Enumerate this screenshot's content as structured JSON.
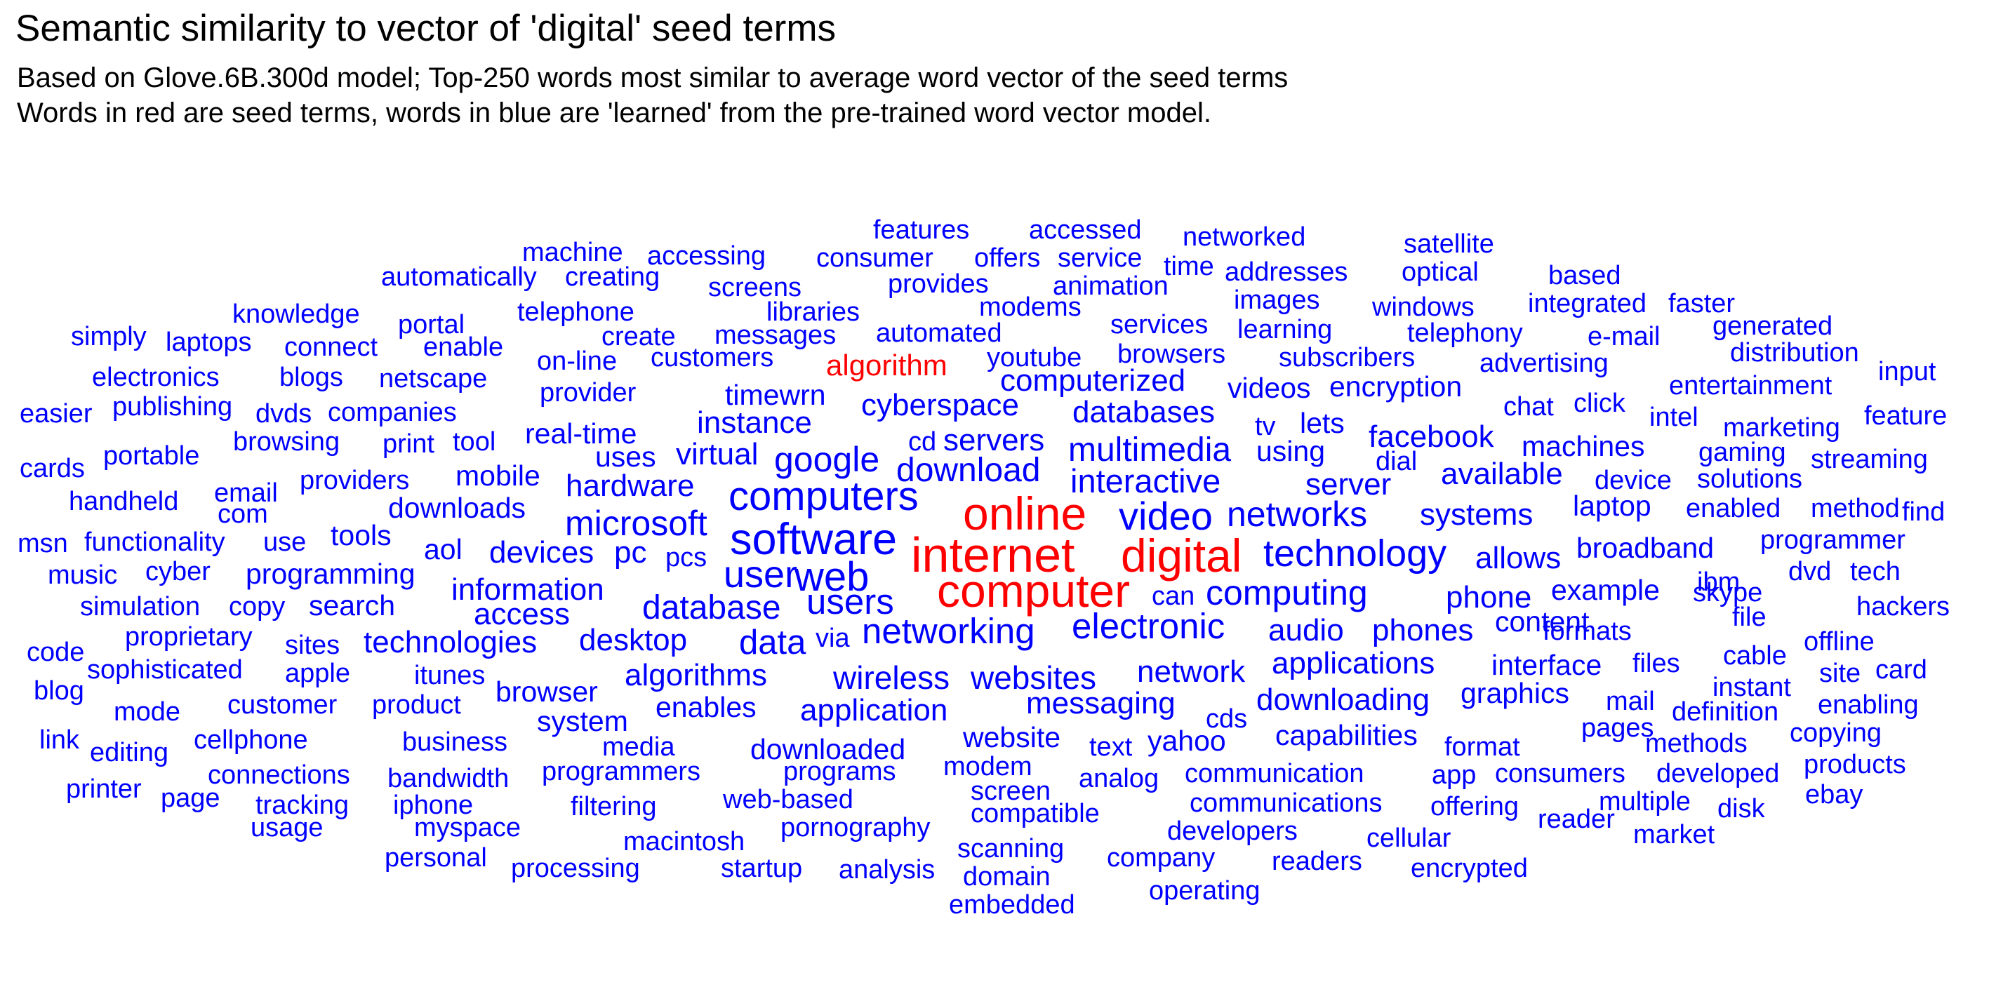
{
  "chart_data": {
    "type": "wordcloud",
    "title": "Semantic similarity to vector of 'digital' seed terms",
    "subtitle": [
      "Based on Glove.6B.300d model; Top-250 words most similar to average word vector of the seed terms",
      "Words in red are seed terms, words in blue are 'learned' from the pre-trained word vector model."
    ],
    "colors": {
      "seed": "#ff0000",
      "learned": "#0000ff",
      "title": "#000000"
    },
    "seed_words": [
      "internet",
      "online",
      "digital",
      "computer",
      "algorithm"
    ],
    "words": [
      {
        "word": "internet",
        "weight": 1.0,
        "seed": true
      },
      {
        "word": "online",
        "weight": 0.96,
        "seed": true
      },
      {
        "word": "digital",
        "weight": 0.96,
        "seed": true
      },
      {
        "word": "computer",
        "weight": 0.98,
        "seed": true
      },
      {
        "word": "algorithm",
        "weight": 0.42,
        "seed": true
      },
      {
        "word": "software",
        "weight": 0.9
      },
      {
        "word": "computers",
        "weight": 0.84
      },
      {
        "word": "web",
        "weight": 0.78
      },
      {
        "word": "video",
        "weight": 0.8
      },
      {
        "word": "technology",
        "weight": 0.78
      },
      {
        "word": "user",
        "weight": 0.74
      },
      {
        "word": "computing",
        "weight": 0.7
      },
      {
        "word": "networking",
        "weight": 0.72
      },
      {
        "word": "electronic",
        "weight": 0.72
      },
      {
        "word": "networks",
        "weight": 0.7
      },
      {
        "word": "microsoft",
        "weight": 0.7
      },
      {
        "word": "users",
        "weight": 0.7
      },
      {
        "word": "database",
        "weight": 0.66
      },
      {
        "word": "data",
        "weight": 0.7
      },
      {
        "word": "google",
        "weight": 0.68
      },
      {
        "word": "wireless",
        "weight": 0.64
      },
      {
        "word": "websites",
        "weight": 0.64
      },
      {
        "word": "interactive",
        "weight": 0.64
      },
      {
        "word": "download",
        "weight": 0.62
      },
      {
        "word": "multimedia",
        "weight": 0.62
      },
      {
        "word": "systems",
        "weight": 0.6
      },
      {
        "word": "audio",
        "weight": 0.6
      },
      {
        "word": "phones",
        "weight": 0.6
      },
      {
        "word": "network",
        "weight": 0.62
      },
      {
        "word": "desktop",
        "weight": 0.62
      },
      {
        "word": "algorithms",
        "weight": 0.6
      },
      {
        "word": "information",
        "weight": 0.58
      },
      {
        "word": "allows",
        "weight": 0.58
      },
      {
        "word": "phone",
        "weight": 0.58
      },
      {
        "word": "applications",
        "weight": 0.58
      },
      {
        "word": "technologies",
        "weight": 0.58
      },
      {
        "word": "application",
        "weight": 0.58
      },
      {
        "word": "messaging",
        "weight": 0.58
      },
      {
        "word": "downloading",
        "weight": 0.56
      },
      {
        "word": "access",
        "weight": 0.56
      },
      {
        "word": "devices",
        "weight": 0.56
      },
      {
        "word": "pc",
        "weight": 0.56
      },
      {
        "word": "virtual",
        "weight": 0.56
      },
      {
        "word": "instance",
        "weight": 0.56
      },
      {
        "word": "hardware",
        "weight": 0.56
      },
      {
        "word": "cyberspace",
        "weight": 0.56
      },
      {
        "word": "databases",
        "weight": 0.56
      },
      {
        "word": "available",
        "weight": 0.56
      },
      {
        "word": "servers",
        "weight": 0.54
      },
      {
        "word": "server",
        "weight": 0.54
      },
      {
        "word": "facebook",
        "weight": 0.54
      },
      {
        "word": "computerized",
        "weight": 0.54
      },
      {
        "word": "real-time",
        "weight": 0.52
      },
      {
        "word": "browser",
        "weight": 0.52
      },
      {
        "word": "mobile",
        "weight": 0.52
      },
      {
        "word": "downloads",
        "weight": 0.52
      },
      {
        "word": "aol",
        "weight": 0.52
      },
      {
        "word": "programming",
        "weight": 0.52
      },
      {
        "word": "timewrn",
        "weight": 0.52
      },
      {
        "word": "uses",
        "weight": 0.52
      },
      {
        "word": "using",
        "weight": 0.52
      },
      {
        "word": "content",
        "weight": 0.5
      },
      {
        "word": "broadband",
        "weight": 0.5
      },
      {
        "word": "interface",
        "weight": 0.5
      },
      {
        "word": "example",
        "weight": 0.5
      },
      {
        "word": "enables",
        "weight": 0.5
      },
      {
        "word": "downloaded",
        "weight": 0.5
      },
      {
        "word": "videos",
        "weight": 0.5
      },
      {
        "word": "encryption",
        "weight": 0.5
      },
      {
        "word": "system",
        "weight": 0.48
      },
      {
        "word": "search",
        "weight": 0.48
      },
      {
        "word": "tools",
        "weight": 0.48
      },
      {
        "word": "machines",
        "weight": 0.48
      },
      {
        "word": "laptop",
        "weight": 0.48
      },
      {
        "word": "graphics",
        "weight": 0.48
      },
      {
        "word": "capabilities",
        "weight": 0.48
      },
      {
        "word": "yahoo",
        "weight": 0.48
      },
      {
        "word": "website",
        "weight": 0.48
      },
      {
        "word": "lets",
        "weight": 0.48
      },
      {
        "word": "browsing",
        "weight": 0.46
      },
      {
        "word": "providers",
        "weight": 0.46
      },
      {
        "word": "companies",
        "weight": 0.46
      },
      {
        "word": "provider",
        "weight": 0.46
      },
      {
        "word": "browsers",
        "weight": 0.46
      },
      {
        "word": "youtube",
        "weight": 0.46
      },
      {
        "word": "subscribers",
        "weight": 0.46
      },
      {
        "word": "media",
        "weight": 0.46
      },
      {
        "word": "programmers",
        "weight": 0.46
      },
      {
        "word": "programs",
        "weight": 0.46
      },
      {
        "word": "communication",
        "weight": 0.46
      },
      {
        "word": "analog",
        "weight": 0.46
      },
      {
        "word": "modem",
        "weight": 0.46
      },
      {
        "word": "itunes",
        "weight": 0.46
      },
      {
        "word": "sites",
        "weight": 0.46
      },
      {
        "word": "apple",
        "weight": 0.46
      },
      {
        "word": "customers",
        "weight": 0.46
      },
      {
        "word": "automated",
        "weight": 0.46
      },
      {
        "word": "services",
        "weight": 0.46
      },
      {
        "word": "chat",
        "weight": 0.46
      },
      {
        "word": "email",
        "weight": 0.46
      },
      {
        "word": "pcs",
        "weight": 0.46
      },
      {
        "word": "dvd",
        "weight": 0.46
      },
      {
        "word": "ibm",
        "weight": 0.44
      },
      {
        "word": "programmer",
        "weight": 0.44
      },
      {
        "word": "skype",
        "weight": 0.44
      },
      {
        "word": "files",
        "weight": 0.44
      },
      {
        "word": "formats",
        "weight": 0.44
      },
      {
        "word": "enabled",
        "weight": 0.44
      },
      {
        "word": "device",
        "weight": 0.44
      },
      {
        "word": "solutions",
        "weight": 0.44
      },
      {
        "word": "gaming",
        "weight": 0.44
      },
      {
        "word": "marketing",
        "weight": 0.44
      },
      {
        "word": "intel",
        "weight": 0.44
      },
      {
        "word": "streaming",
        "weight": 0.44
      },
      {
        "word": "entertainment",
        "weight": 0.44
      },
      {
        "word": "advertising",
        "weight": 0.44
      },
      {
        "word": "telephony",
        "weight": 0.44
      },
      {
        "word": "messages",
        "weight": 0.44
      },
      {
        "word": "on-line",
        "weight": 0.44
      },
      {
        "word": "tool",
        "weight": 0.44
      },
      {
        "word": "print",
        "weight": 0.44
      },
      {
        "word": "use",
        "weight": 0.44
      },
      {
        "word": "functionality",
        "weight": 0.44
      },
      {
        "word": "cyber",
        "weight": 0.44
      },
      {
        "word": "copy",
        "weight": 0.44
      },
      {
        "word": "proprietary",
        "weight": 0.44
      },
      {
        "word": "sophisticated",
        "weight": 0.42
      },
      {
        "word": "product",
        "weight": 0.42
      },
      {
        "word": "customer",
        "weight": 0.42
      },
      {
        "word": "business",
        "weight": 0.42
      },
      {
        "word": "bandwidth",
        "weight": 0.42
      },
      {
        "word": "web-based",
        "weight": 0.42
      },
      {
        "word": "pornography",
        "weight": 0.42
      },
      {
        "word": "screen",
        "weight": 0.42
      },
      {
        "word": "compatible",
        "weight": 0.42
      },
      {
        "word": "communications",
        "weight": 0.42
      },
      {
        "word": "developers",
        "weight": 0.42
      },
      {
        "word": "cellular",
        "weight": 0.42
      },
      {
        "word": "text",
        "weight": 0.42
      },
      {
        "word": "cds",
        "weight": 0.42
      },
      {
        "word": "format",
        "weight": 0.42
      },
      {
        "word": "consumers",
        "weight": 0.42
      },
      {
        "word": "developed",
        "weight": 0.42
      },
      {
        "word": "app",
        "weight": 0.42
      },
      {
        "word": "offering",
        "weight": 0.42
      },
      {
        "word": "multiple",
        "weight": 0.42
      },
      {
        "word": "pages",
        "weight": 0.42
      },
      {
        "word": "mail",
        "weight": 0.42
      },
      {
        "word": "instant",
        "weight": 0.42
      },
      {
        "word": "cable",
        "weight": 0.42
      },
      {
        "word": "definition",
        "weight": 0.42
      },
      {
        "word": "methods",
        "weight": 0.42
      },
      {
        "word": "copying",
        "weight": 0.4
      },
      {
        "word": "products",
        "weight": 0.4
      },
      {
        "word": "hackers",
        "weight": 0.4
      },
      {
        "word": "offline",
        "weight": 0.4
      },
      {
        "word": "tech",
        "weight": 0.4
      },
      {
        "word": "site",
        "weight": 0.4
      },
      {
        "word": "card",
        "weight": 0.4
      },
      {
        "word": "enabling",
        "weight": 0.4
      },
      {
        "word": "file",
        "weight": 0.4
      },
      {
        "word": "method",
        "weight": 0.4
      },
      {
        "word": "find",
        "weight": 0.4
      },
      {
        "word": "feature",
        "weight": 0.4
      },
      {
        "word": "input",
        "weight": 0.4
      },
      {
        "word": "distribution",
        "weight": 0.4
      },
      {
        "word": "generated",
        "weight": 0.4
      },
      {
        "word": "faster",
        "weight": 0.4
      },
      {
        "word": "e-mail",
        "weight": 0.4
      },
      {
        "word": "integrated",
        "weight": 0.4
      },
      {
        "word": "based",
        "weight": 0.4
      },
      {
        "word": "click",
        "weight": 0.4
      },
      {
        "word": "satellite",
        "weight": 0.4
      },
      {
        "word": "optical",
        "weight": 0.4
      },
      {
        "word": "windows",
        "weight": 0.4
      },
      {
        "word": "addresses",
        "weight": 0.4
      },
      {
        "word": "networked",
        "weight": 0.4
      },
      {
        "word": "images",
        "weight": 0.4
      },
      {
        "word": "learning",
        "weight": 0.4
      },
      {
        "word": "time",
        "weight": 0.38
      },
      {
        "word": "accessed",
        "weight": 0.38
      },
      {
        "word": "service",
        "weight": 0.38
      },
      {
        "word": "offers",
        "weight": 0.38
      },
      {
        "word": "animation",
        "weight": 0.4
      },
      {
        "word": "modems",
        "weight": 0.4
      },
      {
        "word": "features",
        "weight": 0.38
      },
      {
        "word": "consumer",
        "weight": 0.38
      },
      {
        "word": "provides",
        "weight": 0.38
      },
      {
        "word": "libraries",
        "weight": 0.38
      },
      {
        "word": "screens",
        "weight": 0.38
      },
      {
        "word": "accessing",
        "weight": 0.38
      },
      {
        "word": "machine",
        "weight": 0.38
      },
      {
        "word": "creating",
        "weight": 0.38
      },
      {
        "word": "automatically",
        "weight": 0.38
      },
      {
        "word": "telephone",
        "weight": 0.38
      },
      {
        "word": "create",
        "weight": 0.38
      },
      {
        "word": "portal",
        "weight": 0.38
      },
      {
        "word": "enable",
        "weight": 0.38
      },
      {
        "word": "knowledge",
        "weight": 0.38
      },
      {
        "word": "connect",
        "weight": 0.38
      },
      {
        "word": "laptops",
        "weight": 0.38
      },
      {
        "word": "simply",
        "weight": 0.38
      },
      {
        "word": "blogs",
        "weight": 0.38
      },
      {
        "word": "netscape",
        "weight": 0.38
      },
      {
        "word": "electronics",
        "weight": 0.38
      },
      {
        "word": "publishing",
        "weight": 0.38
      },
      {
        "word": "dvds",
        "weight": 0.38
      },
      {
        "word": "easier",
        "weight": 0.38
      },
      {
        "word": "cards",
        "weight": 0.38
      },
      {
        "word": "portable",
        "weight": 0.38
      },
      {
        "word": "handheld",
        "weight": 0.38
      },
      {
        "word": "com",
        "weight": 0.36
      },
      {
        "word": "msn",
        "weight": 0.38
      },
      {
        "word": "music",
        "weight": 0.38
      },
      {
        "word": "simulation",
        "weight": 0.38
      },
      {
        "word": "code",
        "weight": 0.38
      },
      {
        "word": "blog",
        "weight": 0.38
      },
      {
        "word": "mode",
        "weight": 0.38
      },
      {
        "word": "link",
        "weight": 0.38
      },
      {
        "word": "editing",
        "weight": 0.38
      },
      {
        "word": "cellphone",
        "weight": 0.38
      },
      {
        "word": "printer",
        "weight": 0.38
      },
      {
        "word": "page",
        "weight": 0.38
      },
      {
        "word": "connections",
        "weight": 0.38
      },
      {
        "word": "tracking",
        "weight": 0.38
      },
      {
        "word": "usage",
        "weight": 0.38
      },
      {
        "word": "iphone",
        "weight": 0.38
      },
      {
        "word": "myspace",
        "weight": 0.38
      },
      {
        "word": "personal",
        "weight": 0.38
      },
      {
        "word": "filtering",
        "weight": 0.38
      },
      {
        "word": "macintosh",
        "weight": 0.38
      },
      {
        "word": "processing",
        "weight": 0.38
      },
      {
        "word": "startup",
        "weight": 0.38
      },
      {
        "word": "analysis",
        "weight": 0.38
      },
      {
        "word": "domain",
        "weight": 0.38
      },
      {
        "word": "embedded",
        "weight": 0.38
      },
      {
        "word": "scanning",
        "weight": 0.38
      },
      {
        "word": "company",
        "weight": 0.38
      },
      {
        "word": "operating",
        "weight": 0.38
      },
      {
        "word": "readers",
        "weight": 0.38
      },
      {
        "word": "encrypted",
        "weight": 0.38
      },
      {
        "word": "market",
        "weight": 0.38
      },
      {
        "word": "reader",
        "weight": 0.38
      },
      {
        "word": "disk",
        "weight": 0.38
      },
      {
        "word": "ebay",
        "weight": 0.38
      },
      {
        "word": "cd",
        "weight": 0.4
      },
      {
        "word": "tv",
        "weight": 0.4
      },
      {
        "word": "dial",
        "weight": 0.4
      },
      {
        "word": "via",
        "weight": 0.42
      },
      {
        "word": "can",
        "weight": 0.42
      }
    ]
  }
}
